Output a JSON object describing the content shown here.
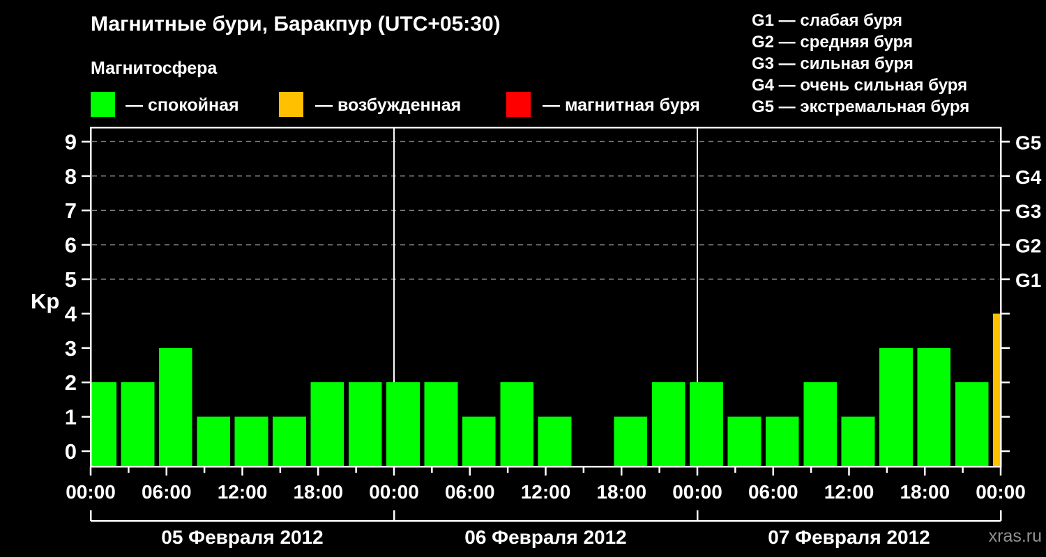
{
  "title": "Магнитные бури, Баракпур (UTC+05:30)",
  "watermark": "xras.ru",
  "legend": {
    "heading": "Магнитосфера",
    "items": [
      {
        "name": "quiet",
        "label": "— спокойная",
        "color": "#00ff00"
      },
      {
        "name": "excited",
        "label": "— возбужденная",
        "color": "#ffc000"
      },
      {
        "name": "storm",
        "label": "— магнитная буря",
        "color": "#ff0000"
      }
    ]
  },
  "storm_scale": [
    "G1 — слабая буря",
    "G2 — средняя буря",
    "G3 — сильная буря",
    "G4 — очень сильная буря",
    "G5 — экстремальная буря"
  ],
  "chart_data": {
    "type": "bar",
    "ylabel": "Kp",
    "y_ticks": [
      0,
      1,
      2,
      3,
      4,
      5,
      6,
      7,
      8,
      9
    ],
    "y_range": [
      -0.45,
      9.45
    ],
    "gridlines_at": [
      5,
      6,
      7,
      8,
      9
    ],
    "right_axis_labels": [
      {
        "value": 5,
        "label": "G1"
      },
      {
        "value": 6,
        "label": "G2"
      },
      {
        "value": 7,
        "label": "G3"
      },
      {
        "value": 8,
        "label": "G4"
      },
      {
        "value": 9,
        "label": "G5"
      }
    ],
    "hours_per_bar": 3,
    "x_total_hours": 72,
    "x_labels": [
      {
        "hour": 0,
        "label": "00:00"
      },
      {
        "hour": 6,
        "label": "06:00"
      },
      {
        "hour": 12,
        "label": "12:00"
      },
      {
        "hour": 18,
        "label": "18:00"
      },
      {
        "hour": 24,
        "label": "00:00"
      },
      {
        "hour": 30,
        "label": "06:00"
      },
      {
        "hour": 36,
        "label": "12:00"
      },
      {
        "hour": 42,
        "label": "18:00"
      },
      {
        "hour": 48,
        "label": "00:00"
      },
      {
        "hour": 54,
        "label": "06:00"
      },
      {
        "hour": 60,
        "label": "12:00"
      },
      {
        "hour": 66,
        "label": "18:00"
      },
      {
        "hour": 72,
        "label": "00:00"
      }
    ],
    "days": [
      {
        "label": "05 Февраля 2012",
        "values": [
          2,
          2,
          3,
          1,
          1,
          1,
          2,
          2
        ]
      },
      {
        "label": "06 Февраля 2012",
        "values": [
          2,
          2,
          1,
          2,
          1,
          null,
          1,
          2
        ]
      },
      {
        "label": "07 Февраля 2012",
        "values": [
          2,
          1,
          1,
          2,
          1,
          3,
          3,
          2
        ]
      }
    ],
    "partial_next_interval_value": 4,
    "color_rule": {
      "quiet_max": 3,
      "excited_max": 4
    },
    "colors": {
      "quiet": "#00ff00",
      "excited": "#ffc000",
      "storm": "#ff0000",
      "grid": "#808080",
      "axis": "#ffffff"
    }
  }
}
